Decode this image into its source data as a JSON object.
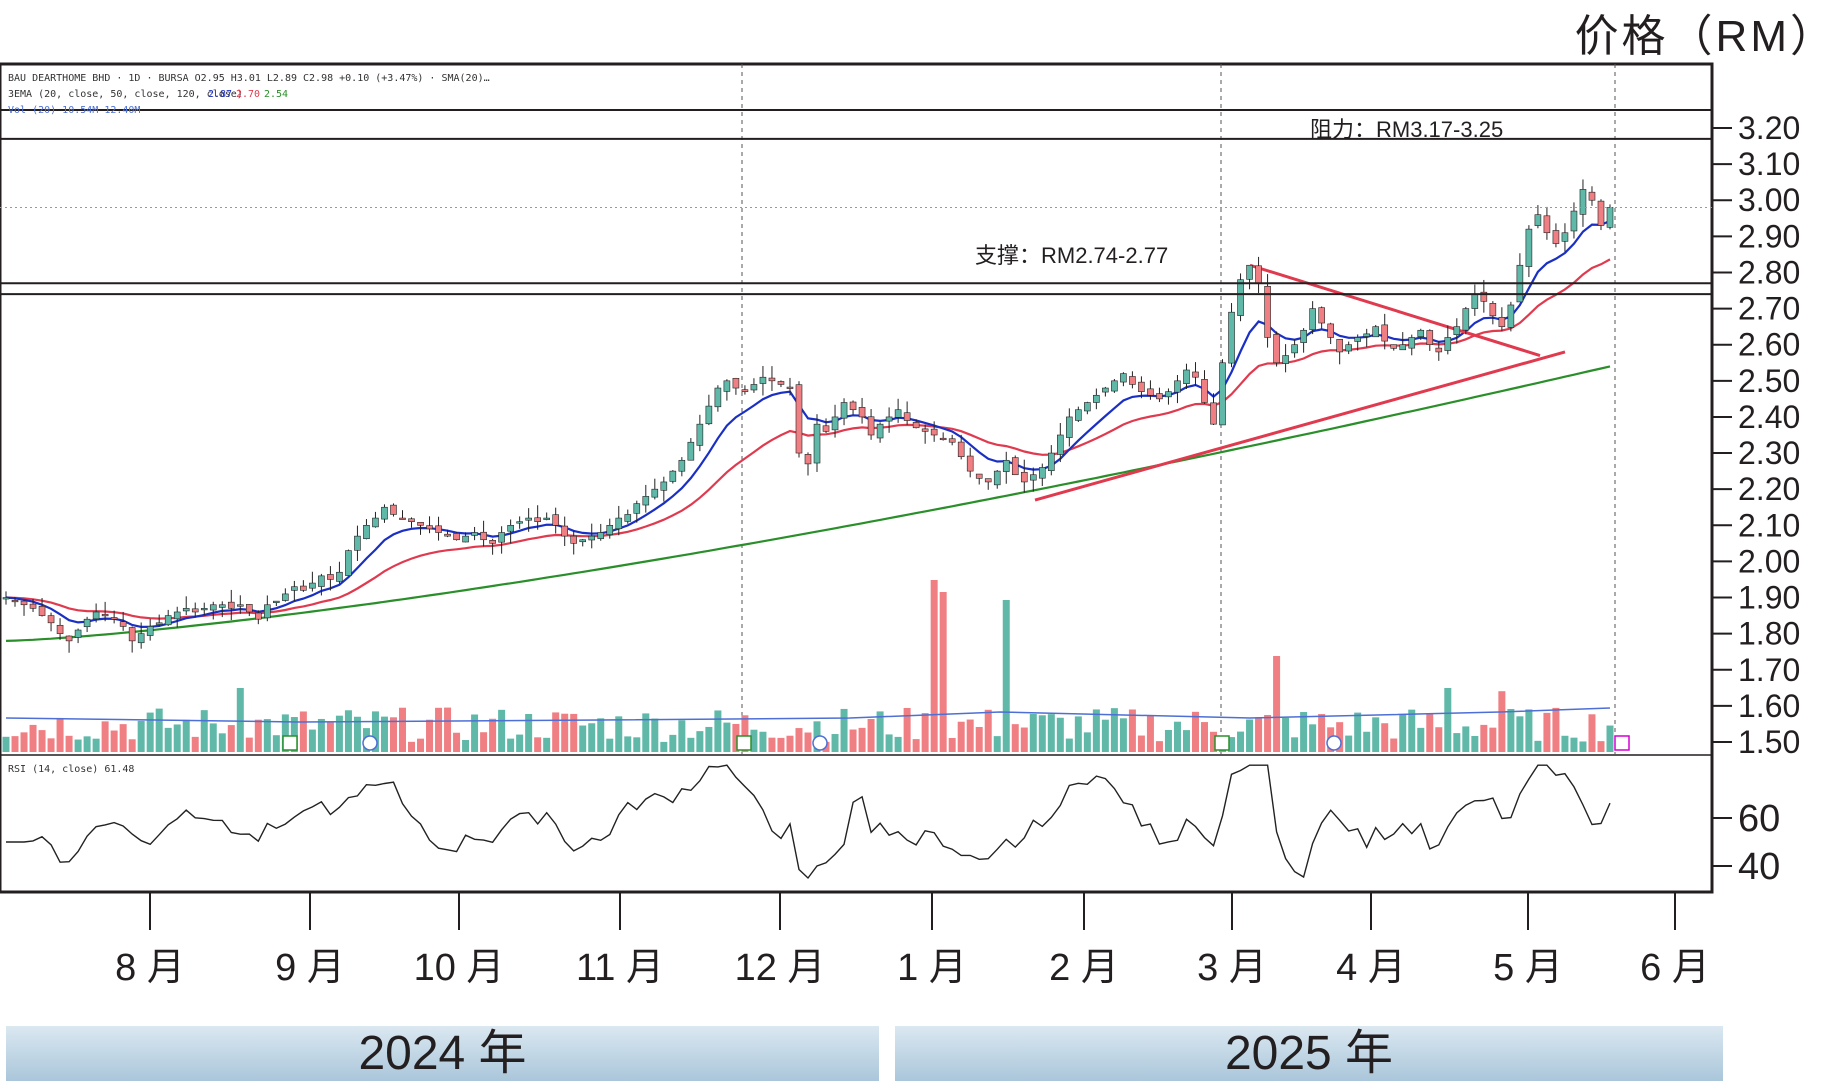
{
  "unit_label": "价格（RM）",
  "header_lines": {
    "line1": "BAU DEARTHOME BHD · 1D · BURSA  O2.95  H3.01  L2.89  C2.98  +0.10 (+3.47%)  ·  SMA(20)…",
    "line2": "3EMA (20, close, 50, close, 120, close)",
    "ema_values": [
      "2.87",
      "2.70",
      "2.54"
    ],
    "line3": "Vol (20)  10.54M  12.40M"
  },
  "rsi_header": "RSI (14, close)  61.48",
  "annotations": {
    "resistance": "阻力：RM3.17-3.25",
    "support": "支撑：RM2.74-2.77"
  },
  "price_axis": {
    "min": 1.45,
    "max": 3.35,
    "ticks": [
      "3.20",
      "3.10",
      "3.00",
      "2.90",
      "2.80",
      "2.70",
      "2.60",
      "2.50",
      "2.40",
      "2.30",
      "2.20",
      "2.10",
      "2.00",
      "1.90",
      "1.80",
      "1.70",
      "1.60",
      "1.50"
    ]
  },
  "rsi_axis": {
    "ticks": [
      "60",
      "40"
    ]
  },
  "months": [
    "8 月",
    "9 月",
    "10 月",
    "11 月",
    "12 月",
    "1 月",
    "2 月",
    "3 月",
    "4 月",
    "5 月",
    "6 月"
  ],
  "years": [
    "2024 年",
    "2025 年"
  ],
  "colors": {
    "ema20": "#1a2fc4",
    "ema50": "#e03a4f",
    "ema120": "#2a8f2a",
    "up": "#5fb8a8",
    "down": "#ef7f83",
    "volume_avg": "#4d6fd6",
    "rsi": "#222222",
    "triangle": "#e03a4f",
    "event_e": "#2a8f2a",
    "event_d": "#4d6fd6",
    "event_future": "#d400d4"
  },
  "chart_data": {
    "type": "candlestick",
    "title": "",
    "ylabel": "价格（RM）",
    "ylim": [
      1.45,
      3.35
    ],
    "x_period": "2024-07 to 2025-05",
    "resistance_zone": [
      3.17,
      3.25
    ],
    "support_zone": [
      2.74,
      2.77
    ],
    "series": [
      {
        "name": "ohlc_closes",
        "values": [
          1.9,
          1.89,
          1.88,
          1.87,
          1.85,
          1.83,
          1.8,
          1.78,
          1.81,
          1.84,
          1.86,
          1.85,
          1.84,
          1.82,
          1.78,
          1.8,
          1.82,
          1.83,
          1.85,
          1.86,
          1.87,
          1.86,
          1.87,
          1.88,
          1.88,
          1.87,
          1.88,
          1.86,
          1.84,
          1.88,
          1.89,
          1.91,
          1.93,
          1.92,
          1.94,
          1.96,
          1.95,
          1.97,
          2.03,
          2.07,
          2.1,
          2.12,
          2.15,
          2.13,
          2.12,
          2.11,
          2.1,
          2.09,
          2.08,
          2.07,
          2.06,
          2.07,
          2.08,
          2.06,
          2.05,
          2.08,
          2.1,
          2.11,
          2.12,
          2.11,
          2.12,
          2.1,
          2.07,
          2.05,
          2.06,
          2.07,
          2.08,
          2.1,
          2.12,
          2.13,
          2.16,
          2.18,
          2.2,
          2.22,
          2.25,
          2.28,
          2.33,
          2.38,
          2.43,
          2.48,
          2.5,
          2.48,
          2.47,
          2.49,
          2.51,
          2.5,
          2.49,
          2.48,
          2.3,
          2.27,
          2.38,
          2.36,
          2.4,
          2.44,
          2.42,
          2.4,
          2.35,
          2.38,
          2.4,
          2.42,
          2.39,
          2.37,
          2.36,
          2.35,
          2.34,
          2.33,
          2.29,
          2.25,
          2.23,
          2.22,
          2.25,
          2.28,
          2.24,
          2.22,
          2.24,
          2.26,
          2.3,
          2.35,
          2.4,
          2.42,
          2.44,
          2.46,
          2.48,
          2.5,
          2.52,
          2.49,
          2.47,
          2.46,
          2.45,
          2.47,
          2.5,
          2.53,
          2.51,
          2.44,
          2.38,
          2.55,
          2.69,
          2.78,
          2.82,
          2.77,
          2.62,
          2.55,
          2.57,
          2.6,
          2.64,
          2.7,
          2.66,
          2.62,
          2.58,
          2.6,
          2.62,
          2.63,
          2.65,
          2.61,
          2.59,
          2.6,
          2.62,
          2.64,
          2.6,
          2.58,
          2.62,
          2.65,
          2.7,
          2.74,
          2.72,
          2.68,
          2.65,
          2.71,
          2.82,
          2.92,
          2.96,
          2.91,
          2.88,
          2.91,
          2.97,
          3.03,
          3.0,
          2.93,
          2.98
        ]
      },
      {
        "name": "EMA 20",
        "last": 2.87
      },
      {
        "name": "EMA 50",
        "last": 2.7
      },
      {
        "name": "EMA 120",
        "last": 2.54
      },
      {
        "name": "RSI 14",
        "last": 61.48
      }
    ]
  }
}
